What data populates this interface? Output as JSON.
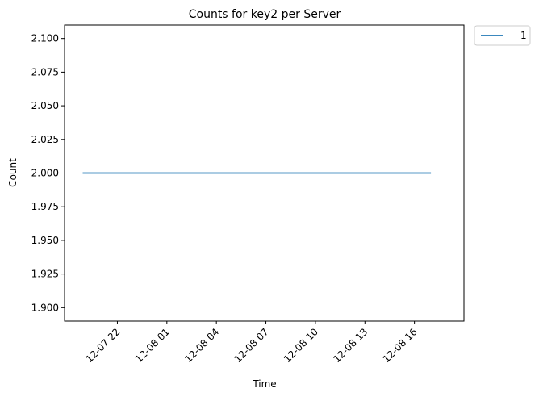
{
  "chart_data": {
    "type": "line",
    "title": "Counts for key2 per Server",
    "xlabel": "Time",
    "ylabel": "Count",
    "x_ticks": [
      "12-07 22",
      "12-08 01",
      "12-08 04",
      "12-08 07",
      "12-08 10",
      "12-08 13",
      "12-08 16"
    ],
    "x_tick_hours": [
      22,
      25,
      28,
      31,
      34,
      37,
      40
    ],
    "xlim_hours": [
      18.8,
      43.0
    ],
    "y_ticks": [
      "1.900",
      "1.925",
      "1.950",
      "1.975",
      "2.000",
      "2.025",
      "2.050",
      "2.075",
      "2.100"
    ],
    "ylim": [
      1.89,
      2.11
    ],
    "series": [
      {
        "name": "1",
        "color": "#1f77b4",
        "x_hours": [
          19.9,
          41.0
        ],
        "values": [
          2.0,
          2.0
        ]
      }
    ],
    "legend_position": "outside-top-right",
    "grid": false
  }
}
